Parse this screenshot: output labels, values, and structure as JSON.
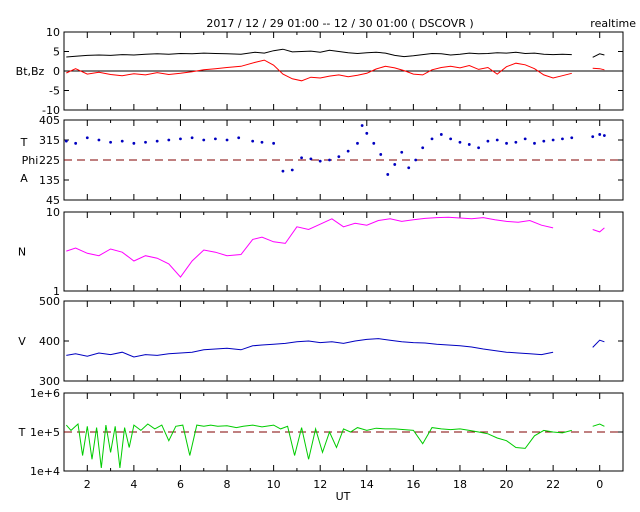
{
  "header": {
    "title": "2017 / 12 / 29   01:00 -- 12 / 30   01:00 ( DSCOVR )",
    "tag": "realtime"
  },
  "x_axis": {
    "label": "UT",
    "ticks": [
      "2",
      "4",
      "6",
      "8",
      "10",
      "12",
      "14",
      "16",
      "18",
      "20",
      "22",
      "0"
    ]
  },
  "colors": {
    "bt": "#000000",
    "bz": "#ff0000",
    "phi": "#0000c0",
    "n": "#ff00ff",
    "v": "#0000c0",
    "t": "#00cc00",
    "ref": "#800000"
  },
  "chart_data": [
    {
      "type": "line",
      "panel": "magnetic field",
      "ylabel": "Bt,Bz",
      "ytick_labels": [
        "10",
        "5",
        "0",
        "-5",
        "-10"
      ],
      "ylim": [
        -10,
        10
      ],
      "x": [
        1.1,
        1.5,
        2,
        2.5,
        3,
        3.5,
        4,
        4.5,
        5,
        5.5,
        6,
        6.5,
        7,
        7.5,
        8,
        8.6,
        9.2,
        9.6,
        10,
        10.4,
        10.8,
        11.2,
        11.6,
        12,
        12.4,
        12.8,
        13.2,
        13.6,
        14,
        14.4,
        14.8,
        15.2,
        15.6,
        16,
        16.4,
        16.8,
        17.2,
        17.6,
        18,
        18.4,
        18.8,
        19.2,
        19.6,
        20,
        20.4,
        20.8,
        21.2,
        21.6,
        22,
        22.4,
        22.8,
        23.7,
        24,
        24.2
      ],
      "series": [
        {
          "name": "Bt",
          "values": [
            3.6,
            3.8,
            4.0,
            4.1,
            4.0,
            4.2,
            4.1,
            4.3,
            4.4,
            4.3,
            4.5,
            4.4,
            4.6,
            4.5,
            4.4,
            4.3,
            4.8,
            4.6,
            5.2,
            5.6,
            4.9,
            5.0,
            5.1,
            4.8,
            5.3,
            5.0,
            4.7,
            4.5,
            4.7,
            4.8,
            4.6,
            4.0,
            3.7,
            3.9,
            4.2,
            4.5,
            4.4,
            4.1,
            4.3,
            4.6,
            4.4,
            4.5,
            4.7,
            4.6,
            4.8,
            4.5,
            4.6,
            4.3,
            4.2,
            4.3,
            4.2,
            3.5,
            4.4,
            4.1
          ]
        },
        {
          "name": "Bz",
          "values": [
            -0.5,
            0.6,
            -0.8,
            -0.3,
            -0.9,
            -1.2,
            -0.7,
            -1.0,
            -0.4,
            -0.9,
            -0.6,
            -0.2,
            0.3,
            0.6,
            0.9,
            1.2,
            2.2,
            2.8,
            1.5,
            -0.8,
            -2.0,
            -2.5,
            -1.6,
            -1.8,
            -1.3,
            -1.0,
            -1.5,
            -1.1,
            -0.6,
            0.5,
            1.2,
            0.8,
            0.1,
            -0.8,
            -1.0,
            0.3,
            0.9,
            1.2,
            0.8,
            1.4,
            0.4,
            0.9,
            -0.8,
            1.1,
            2.0,
            1.6,
            0.6,
            -1.0,
            -1.8,
            -1.2,
            -0.6,
            0.7,
            0.6,
            0.3
          ]
        }
      ]
    },
    {
      "type": "scatter",
      "panel": "phi angle",
      "ylabel": [
        "T",
        "Phi",
        "A"
      ],
      "ytick_labels": [
        "405",
        "315",
        "225",
        "135",
        "45"
      ],
      "ylim": [
        45,
        405
      ],
      "reference_line": 225,
      "x": [
        1.1,
        1.5,
        2,
        2.5,
        3,
        3.5,
        4,
        4.5,
        5,
        5.5,
        6,
        6.5,
        7,
        7.5,
        8,
        8.5,
        9.1,
        9.5,
        10,
        10.4,
        10.8,
        11.2,
        11.6,
        12,
        12.4,
        12.8,
        13.2,
        13.6,
        13.8,
        14,
        14.3,
        14.6,
        14.9,
        15.2,
        15.5,
        15.8,
        16.1,
        16.4,
        16.8,
        17.2,
        17.6,
        18,
        18.4,
        18.8,
        19.2,
        19.6,
        20,
        20.4,
        20.8,
        21.2,
        21.6,
        22,
        22.4,
        22.8,
        23.7,
        24,
        24.2
      ],
      "series": [
        {
          "name": "Phi",
          "values": [
            310,
            300,
            325,
            315,
            305,
            310,
            300,
            305,
            310,
            315,
            320,
            325,
            315,
            320,
            315,
            325,
            310,
            305,
            300,
            175,
            180,
            235,
            230,
            220,
            225,
            240,
            265,
            300,
            380,
            345,
            300,
            250,
            160,
            205,
            260,
            190,
            225,
            280,
            320,
            340,
            320,
            305,
            295,
            280,
            310,
            315,
            300,
            305,
            320,
            300,
            310,
            315,
            320,
            325,
            330,
            340,
            335
          ]
        }
      ]
    },
    {
      "type": "line",
      "panel": "density",
      "ylabel": "N",
      "y_scale": "log",
      "ytick_labels": [
        "10",
        "1"
      ],
      "ylim": [
        1,
        10
      ],
      "x": [
        1.1,
        1.5,
        2,
        2.5,
        3,
        3.5,
        4,
        4.5,
        5,
        5.5,
        6,
        6.5,
        7,
        7.5,
        8,
        8.6,
        9.1,
        9.5,
        10,
        10.5,
        11,
        11.5,
        12,
        12.5,
        13,
        13.5,
        14,
        14.5,
        15,
        15.5,
        16,
        16.5,
        17,
        17.5,
        18,
        18.5,
        19,
        19.5,
        20,
        20.5,
        21,
        21.5,
        22,
        22.6,
        23.7,
        24,
        24.2
      ],
      "series": [
        {
          "name": "N",
          "values": [
            3.2,
            3.5,
            3.0,
            2.8,
            3.4,
            3.1,
            2.4,
            2.8,
            2.6,
            2.2,
            1.5,
            2.4,
            3.3,
            3.1,
            2.8,
            2.9,
            4.5,
            4.8,
            4.2,
            4.0,
            6.5,
            6.0,
            7.0,
            8.2,
            6.5,
            7.2,
            6.8,
            7.8,
            8.2,
            7.6,
            8.0,
            8.3,
            8.5,
            8.6,
            8.4,
            8.2,
            8.5,
            8.0,
            7.6,
            7.4,
            7.8,
            6.8,
            6.3,
            6.8,
            6.0,
            5.6,
            6.3
          ]
        }
      ]
    },
    {
      "type": "line",
      "panel": "speed",
      "ylabel": "V",
      "ytick_labels": [
        "500",
        "400",
        "300"
      ],
      "ylim": [
        300,
        500
      ],
      "x": [
        1.1,
        1.5,
        2,
        2.5,
        3,
        3.5,
        4,
        4.5,
        5,
        5.5,
        6,
        6.5,
        7,
        7.5,
        8,
        8.6,
        9.1,
        9.5,
        10,
        10.5,
        11,
        11.5,
        12,
        12.5,
        13,
        13.5,
        14,
        14.5,
        15,
        15.5,
        16,
        16.5,
        17,
        17.5,
        18,
        18.5,
        19,
        19.5,
        20,
        20.5,
        21,
        21.5,
        22,
        22.6,
        23.7,
        24,
        24.2
      ],
      "series": [
        {
          "name": "V",
          "values": [
            364,
            368,
            362,
            370,
            366,
            372,
            360,
            366,
            364,
            368,
            370,
            372,
            378,
            380,
            382,
            378,
            388,
            390,
            392,
            394,
            398,
            400,
            396,
            398,
            394,
            400,
            404,
            406,
            402,
            398,
            396,
            395,
            392,
            390,
            388,
            385,
            380,
            376,
            372,
            370,
            368,
            366,
            372,
            378,
            384,
            402,
            398
          ]
        }
      ]
    },
    {
      "type": "line",
      "panel": "temperature",
      "ylabel": "T",
      "y_scale": "log",
      "ytick_labels": [
        "1e+6",
        "1e+5",
        "1e+4"
      ],
      "ylim": [
        10000,
        1000000
      ],
      "reference_line": 100000,
      "x": [
        1.1,
        1.3,
        1.6,
        1.8,
        2,
        2.2,
        2.4,
        2.6,
        2.8,
        3,
        3.2,
        3.4,
        3.6,
        3.8,
        4,
        4.3,
        4.6,
        4.9,
        5.2,
        5.5,
        5.8,
        6.1,
        6.4,
        6.7,
        7,
        7.3,
        7.6,
        8,
        8.4,
        8.7,
        9.1,
        9.5,
        10,
        10.3,
        10.6,
        10.9,
        11.2,
        11.5,
        11.8,
        12.1,
        12.4,
        12.7,
        13,
        13.3,
        13.6,
        14,
        14.4,
        14.8,
        15.2,
        15.6,
        16,
        16.4,
        16.8,
        17.2,
        17.6,
        18,
        18.4,
        18.8,
        19.2,
        19.6,
        20,
        20.4,
        20.8,
        21.2,
        21.6,
        22,
        22.4,
        22.8,
        23.7,
        24,
        24.2
      ],
      "series": [
        {
          "name": "T",
          "values": [
            150000,
            110000,
            160000,
            25000,
            140000,
            20000,
            130000,
            12000,
            150000,
            30000,
            140000,
            12000,
            130000,
            40000,
            150000,
            110000,
            160000,
            120000,
            150000,
            60000,
            140000,
            150000,
            25000,
            150000,
            140000,
            150000,
            140000,
            145000,
            130000,
            140000,
            150000,
            135000,
            150000,
            120000,
            140000,
            25000,
            130000,
            20000,
            120000,
            30000,
            100000,
            40000,
            120000,
            100000,
            130000,
            110000,
            125000,
            120000,
            120000,
            115000,
            110000,
            50000,
            130000,
            120000,
            115000,
            120000,
            110000,
            100000,
            90000,
            70000,
            60000,
            40000,
            38000,
            80000,
            110000,
            100000,
            95000,
            110000,
            140000,
            160000,
            140000
          ]
        }
      ]
    }
  ]
}
